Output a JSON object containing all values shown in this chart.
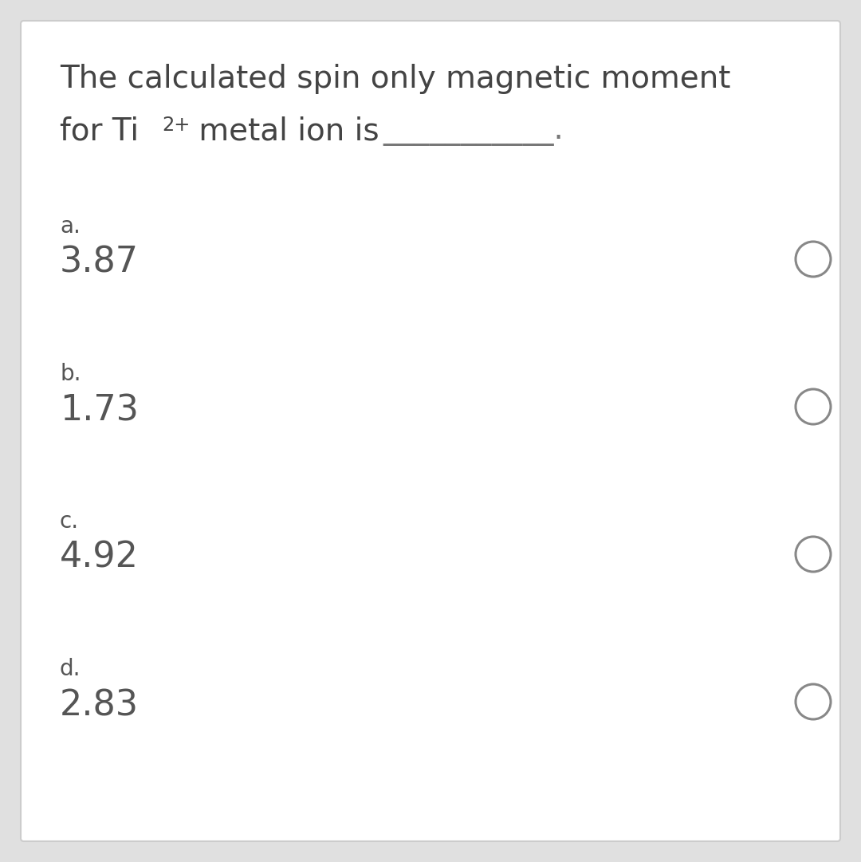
{
  "title_line1": "The calculated spin only magnetic moment",
  "title_line2_prefix": "for Ti",
  "title_line2_superscript": "2+",
  "title_line2_suffix": " metal ion is",
  "underline_text": "___________.",
  "options": [
    {
      "label": "a.",
      "value": "3.87"
    },
    {
      "label": "b.",
      "value": "1.73"
    },
    {
      "label": "c.",
      "value": "4.92"
    },
    {
      "label": "d.",
      "value": "2.83"
    }
  ],
  "bg_color": "#ffffff",
  "border_color": "#cccccc",
  "text_color": "#555555",
  "title_color": "#444444",
  "circle_color": "#888888",
  "title_fontsize": 28,
  "option_label_fontsize": 20,
  "option_value_fontsize": 32,
  "underline_color": "#777777",
  "outer_bg": "#e0e0e0"
}
